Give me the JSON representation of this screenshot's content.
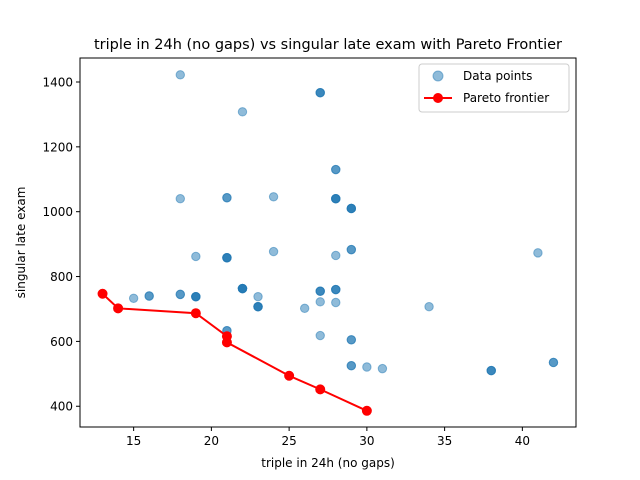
{
  "chart_data": {
    "type": "scatter",
    "title": "triple in 24h (no gaps) vs singular late exam with Pareto Frontier",
    "xlabel": "triple in 24h (no gaps)",
    "ylabel": "singular late exam",
    "xlim": [
      11.55,
      43.45
    ],
    "ylim": [
      336,
      1474
    ],
    "xticks": [
      15,
      20,
      25,
      30,
      35,
      40
    ],
    "yticks": [
      400,
      600,
      800,
      1000,
      1200,
      1400
    ],
    "grid": false,
    "legend_position": "top-right",
    "series": [
      {
        "name": "Data points",
        "kind": "scatter",
        "color": "#1f77b4",
        "alpha": 0.5,
        "points": [
          [
            18,
            1422
          ],
          [
            22,
            1308
          ],
          [
            27,
            1367
          ],
          [
            27,
            1367
          ],
          [
            27,
            1367
          ],
          [
            28,
            1130
          ],
          [
            28,
            1130
          ],
          [
            18,
            1040
          ],
          [
            21,
            1043
          ],
          [
            21,
            1043
          ],
          [
            24,
            1046
          ],
          [
            28,
            1040
          ],
          [
            28,
            1040
          ],
          [
            28,
            1040
          ],
          [
            28,
            1040
          ],
          [
            29,
            1010
          ],
          [
            29,
            1010
          ],
          [
            29,
            1010
          ],
          [
            29,
            1010
          ],
          [
            19,
            862
          ],
          [
            21,
            858
          ],
          [
            21,
            858
          ],
          [
            21,
            858
          ],
          [
            21,
            858
          ],
          [
            24,
            877
          ],
          [
            28,
            865
          ],
          [
            29,
            883
          ],
          [
            29,
            883
          ],
          [
            41,
            873
          ],
          [
            15,
            733
          ],
          [
            16,
            740
          ],
          [
            16,
            740
          ],
          [
            18,
            745
          ],
          [
            18,
            745
          ],
          [
            19,
            738
          ],
          [
            19,
            738
          ],
          [
            19,
            738
          ],
          [
            19,
            738
          ],
          [
            22,
            763
          ],
          [
            22,
            763
          ],
          [
            22,
            763
          ],
          [
            22,
            763
          ],
          [
            22,
            763
          ],
          [
            23,
            738
          ],
          [
            23,
            707
          ],
          [
            23,
            707
          ],
          [
            23,
            707
          ],
          [
            23,
            707
          ],
          [
            26,
            702
          ],
          [
            27,
            755
          ],
          [
            27,
            755
          ],
          [
            27,
            755
          ],
          [
            27,
            722
          ],
          [
            28,
            760
          ],
          [
            28,
            760
          ],
          [
            28,
            760
          ],
          [
            28,
            720
          ],
          [
            34,
            707
          ],
          [
            21,
            633
          ],
          [
            21,
            633
          ],
          [
            27,
            618
          ],
          [
            29,
            605
          ],
          [
            29,
            605
          ],
          [
            29,
            525
          ],
          [
            29,
            525
          ],
          [
            30,
            521
          ],
          [
            31,
            516
          ],
          [
            38,
            510
          ],
          [
            38,
            510
          ],
          [
            38,
            510
          ],
          [
            42,
            535
          ],
          [
            42,
            535
          ]
        ]
      },
      {
        "name": "Pareto frontier",
        "kind": "line",
        "color": "#ff0000",
        "points": [
          [
            13,
            747
          ],
          [
            14,
            702
          ],
          [
            19,
            687
          ],
          [
            21,
            616
          ],
          [
            21,
            597
          ],
          [
            25,
            494
          ],
          [
            27,
            452
          ],
          [
            30,
            386
          ]
        ]
      }
    ]
  }
}
